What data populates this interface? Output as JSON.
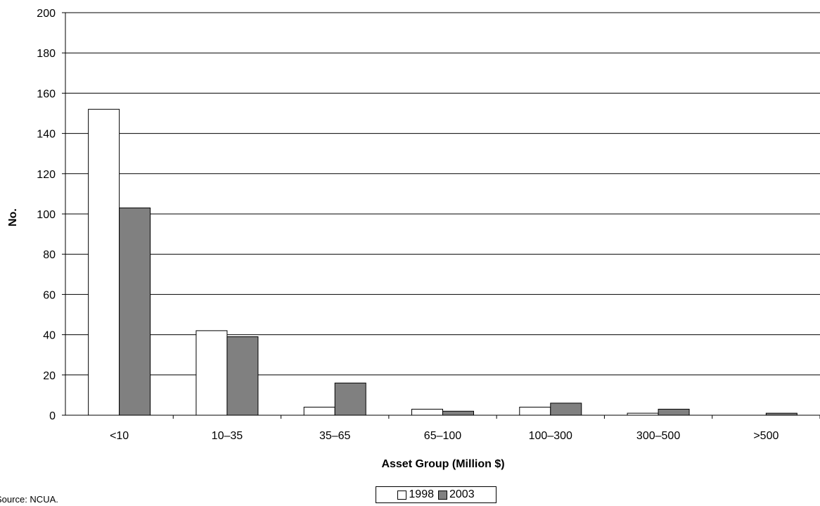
{
  "chart_data": {
    "type": "bar",
    "categories": [
      "<10",
      "10–35",
      "35–65",
      "65–100",
      "100–300",
      "300–500",
      ">500"
    ],
    "series": [
      {
        "name": "1998",
        "values": [
          152,
          42,
          4,
          3,
          4,
          1,
          0
        ],
        "color": "#ffffff"
      },
      {
        "name": "2003",
        "values": [
          103,
          39,
          16,
          2,
          6,
          3,
          1
        ],
        "color": "#808080"
      }
    ],
    "title": "",
    "xlabel": "Asset Group (Million $)",
    "ylabel": "No.",
    "ylim": [
      0,
      200
    ],
    "yticks": [
      0,
      20,
      40,
      60,
      80,
      100,
      120,
      140,
      160,
      180,
      200
    ],
    "grid": true,
    "legend_position": "bottom"
  },
  "source_note": "Source: NCUA."
}
